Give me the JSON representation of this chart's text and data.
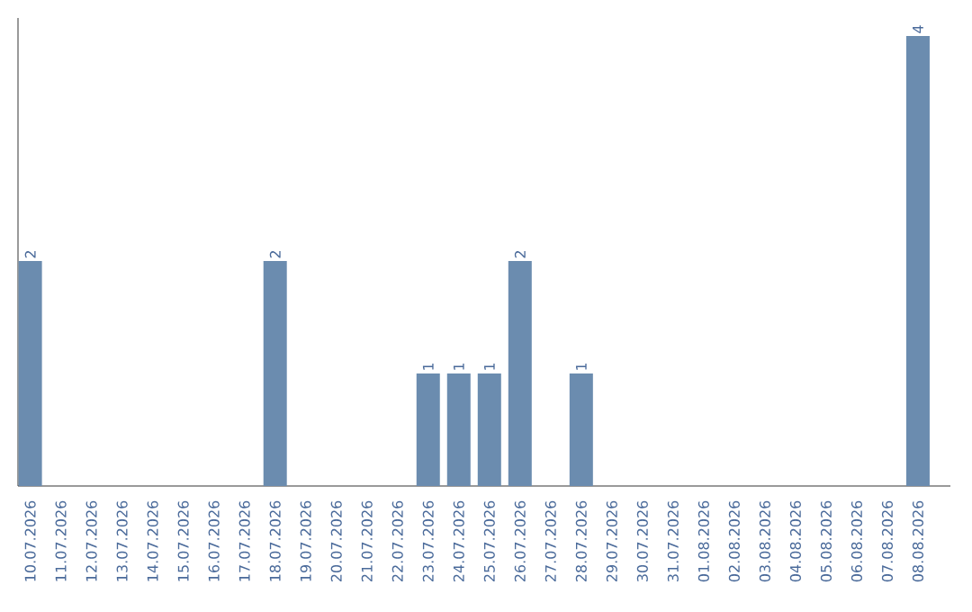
{
  "chart_data": {
    "type": "bar",
    "categories": [
      "10.07.2026",
      "11.07.2026",
      "12.07.2026",
      "13.07.2026",
      "14.07.2026",
      "15.07.2026",
      "16.07.2026",
      "17.07.2026",
      "18.07.2026",
      "19.07.2026",
      "20.07.2026",
      "21.07.2026",
      "22.07.2026",
      "23.07.2026",
      "24.07.2026",
      "25.07.2026",
      "26.07.2026",
      "27.07.2026",
      "28.07.2026",
      "29.07.2026",
      "30.07.2026",
      "31.07.2026",
      "01.08.2026",
      "02.08.2026",
      "03.08.2026",
      "04.08.2026",
      "05.08.2026",
      "06.08.2026",
      "07.08.2026",
      "08.08.2026"
    ],
    "values": [
      2,
      0,
      0,
      0,
      0,
      0,
      0,
      0,
      2,
      0,
      0,
      0,
      0,
      1,
      1,
      1,
      2,
      0,
      1,
      0,
      0,
      0,
      0,
      0,
      0,
      0,
      0,
      0,
      0,
      4
    ],
    "value_labels": [
      "2",
      null,
      null,
      null,
      null,
      null,
      null,
      null,
      "2",
      null,
      null,
      null,
      null,
      "1",
      "1",
      "1",
      "2",
      null,
      "1",
      null,
      null,
      null,
      null,
      null,
      null,
      null,
      null,
      null,
      null,
      "4"
    ],
    "color": "#6b8caf",
    "ylim": [
      0,
      4.16
    ],
    "tick_labels": "x",
    "grid": false
  }
}
